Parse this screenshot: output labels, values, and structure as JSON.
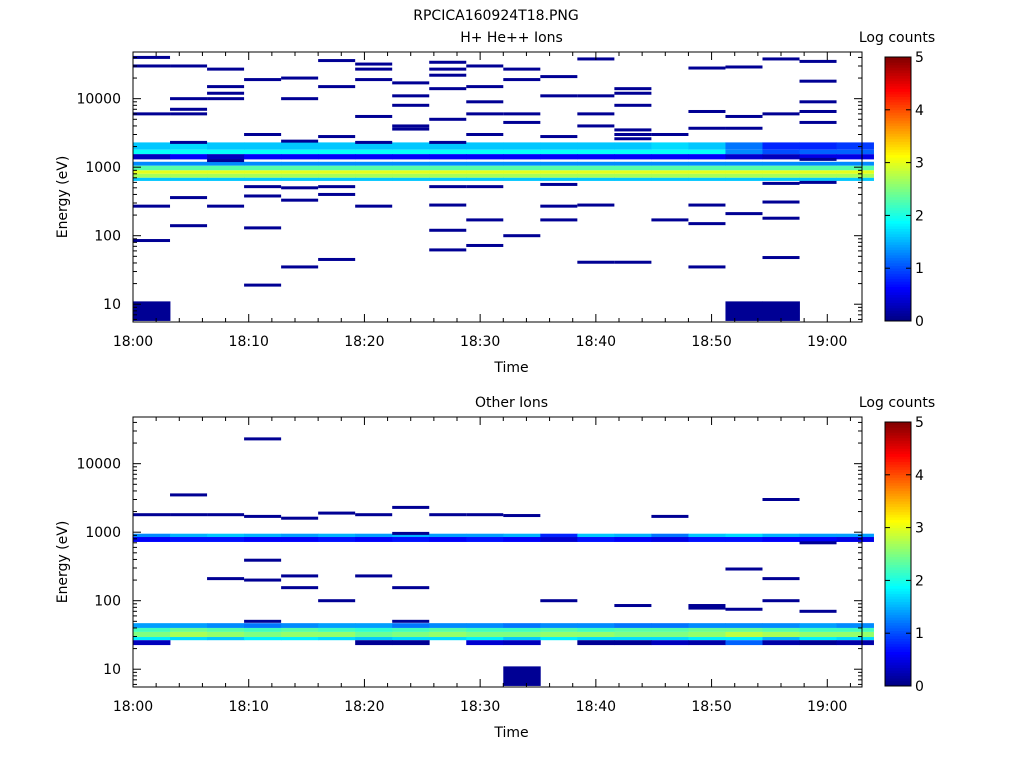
{
  "figure_title": "RPCICA160924T18.PNG",
  "chart_data": [
    {
      "type": "heatmap",
      "title": "H+ He++ Ions",
      "xlabel": "Time",
      "ylabel": "Energy (eV)",
      "x_range": [
        "18:00",
        "19:03"
      ],
      "x_ticks": [
        "18:00",
        "18:10",
        "18:20",
        "18:30",
        "18:40",
        "18:50",
        "19:00"
      ],
      "y_scale": "log",
      "y_range": [
        5.5,
        48000
      ],
      "y_ticks": [
        "10",
        "100",
        "1000",
        "10000"
      ],
      "colorbar": {
        "label": "Log counts",
        "range": [
          0,
          5
        ],
        "ticks": [
          "0",
          "1",
          "2",
          "3",
          "4",
          "5"
        ],
        "colormap": "jet"
      },
      "time_step_min": 3.2,
      "time_columns": 20,
      "value_unit": "log10 counts",
      "bands": [
        {
          "e_low": 1800,
          "e_high": 2300,
          "values": [
            1.6,
            1.7,
            1.6,
            1.6,
            1.6,
            1.6,
            1.6,
            1.6,
            1.6,
            1.6,
            1.6,
            1.6,
            1.6,
            1.6,
            1.7,
            1.6,
            1.2,
            0.8,
            0.8,
            0.9
          ]
        },
        {
          "e_low": 1550,
          "e_high": 1800,
          "values": [
            1.9,
            1.9,
            1.9,
            1.9,
            1.9,
            1.9,
            1.9,
            1.9,
            1.9,
            1.9,
            1.9,
            1.9,
            1.9,
            1.9,
            1.9,
            1.9,
            1.3,
            1.0,
            1.1,
            1.1
          ]
        },
        {
          "e_low": 1300,
          "e_high": 1550,
          "values": [
            0.3,
            0.6,
            0.3,
            0.6,
            0.6,
            0.6,
            0.6,
            0.6,
            0.6,
            0.6,
            0.6,
            0.6,
            0.6,
            0.6,
            0.6,
            0.6,
            0.4,
            0.3,
            0.5,
            0.5
          ]
        },
        {
          "e_low": 1050,
          "e_high": 1200,
          "values": [
            1.3,
            1.3,
            1.3,
            1.3,
            1.3,
            1.3,
            1.3,
            1.3,
            1.3,
            1.3,
            1.3,
            1.3,
            1.3,
            1.3,
            1.3,
            1.3,
            1.3,
            1.3,
            1.3,
            1.3
          ]
        },
        {
          "e_low": 900,
          "e_high": 1050,
          "values": [
            2.3,
            2.3,
            2.3,
            2.3,
            2.3,
            2.3,
            2.3,
            2.3,
            2.3,
            2.3,
            2.3,
            2.3,
            2.3,
            2.3,
            2.3,
            2.3,
            2.3,
            2.3,
            2.3,
            2.3
          ]
        },
        {
          "e_low": 800,
          "e_high": 900,
          "values": [
            3.0,
            3.0,
            3.0,
            3.0,
            3.0,
            3.0,
            3.0,
            3.0,
            3.0,
            3.0,
            3.0,
            3.0,
            3.0,
            3.0,
            3.0,
            3.0,
            3.0,
            3.0,
            3.0,
            3.0
          ]
        },
        {
          "e_low": 700,
          "e_high": 800,
          "values": [
            2.7,
            2.7,
            2.7,
            2.7,
            2.7,
            2.7,
            2.7,
            2.7,
            2.7,
            2.7,
            2.7,
            2.7,
            2.7,
            2.7,
            2.7,
            2.7,
            2.7,
            2.7,
            2.7,
            2.7
          ]
        },
        {
          "e_low": 630,
          "e_high": 700,
          "values": [
            1.6,
            1.6,
            1.6,
            1.6,
            1.6,
            1.6,
            1.6,
            1.6,
            1.6,
            1.6,
            1.6,
            1.6,
            1.6,
            1.6,
            1.6,
            1.6,
            1.6,
            1.6,
            1.6,
            1.6
          ]
        },
        {
          "e_low": 5.7,
          "e_high": 11,
          "values": [
            0.1,
            null,
            null,
            null,
            null,
            null,
            null,
            null,
            null,
            null,
            null,
            null,
            null,
            null,
            null,
            null,
            0.1,
            0.1,
            null,
            null
          ]
        }
      ],
      "marks": [
        {
          "col": 0,
          "e": 40000
        },
        {
          "col": 0,
          "e": 30000
        },
        {
          "col": 0,
          "e": 6000
        },
        {
          "col": 0,
          "e": 270
        },
        {
          "col": 0,
          "e": 85
        },
        {
          "col": 1,
          "e": 30000
        },
        {
          "col": 1,
          "e": 10000
        },
        {
          "col": 1,
          "e": 7000
        },
        {
          "col": 1,
          "e": 6000
        },
        {
          "col": 1,
          "e": 2300
        },
        {
          "col": 1,
          "e": 360
        },
        {
          "col": 1,
          "e": 140
        },
        {
          "col": 2,
          "e": 27000
        },
        {
          "col": 2,
          "e": 15000
        },
        {
          "col": 2,
          "e": 12000
        },
        {
          "col": 2,
          "e": 10000
        },
        {
          "col": 2,
          "e": 1250
        },
        {
          "col": 2,
          "e": 270
        },
        {
          "col": 3,
          "e": 19000
        },
        {
          "col": 3,
          "e": 3000
        },
        {
          "col": 3,
          "e": 520
        },
        {
          "col": 3,
          "e": 380
        },
        {
          "col": 3,
          "e": 130
        },
        {
          "col": 3,
          "e": 19
        },
        {
          "col": 4,
          "e": 20000
        },
        {
          "col": 4,
          "e": 10000
        },
        {
          "col": 4,
          "e": 2400
        },
        {
          "col": 4,
          "e": 500
        },
        {
          "col": 4,
          "e": 330
        },
        {
          "col": 4,
          "e": 35
        },
        {
          "col": 5,
          "e": 36000
        },
        {
          "col": 5,
          "e": 15000
        },
        {
          "col": 5,
          "e": 2800
        },
        {
          "col": 5,
          "e": 520
        },
        {
          "col": 5,
          "e": 400
        },
        {
          "col": 5,
          "e": 45
        },
        {
          "col": 6,
          "e": 32000
        },
        {
          "col": 6,
          "e": 27000
        },
        {
          "col": 6,
          "e": 19000
        },
        {
          "col": 6,
          "e": 5500
        },
        {
          "col": 6,
          "e": 2300
        },
        {
          "col": 6,
          "e": 270
        },
        {
          "col": 7,
          "e": 17000
        },
        {
          "col": 7,
          "e": 11000
        },
        {
          "col": 7,
          "e": 8000
        },
        {
          "col": 7,
          "e": 4000
        },
        {
          "col": 7,
          "e": 3600
        },
        {
          "col": 8,
          "e": 34000
        },
        {
          "col": 8,
          "e": 27000
        },
        {
          "col": 8,
          "e": 22000
        },
        {
          "col": 8,
          "e": 14000
        },
        {
          "col": 8,
          "e": 5000
        },
        {
          "col": 8,
          "e": 2300
        },
        {
          "col": 8,
          "e": 520
        },
        {
          "col": 8,
          "e": 280
        },
        {
          "col": 8,
          "e": 120
        },
        {
          "col": 8,
          "e": 62
        },
        {
          "col": 9,
          "e": 30000
        },
        {
          "col": 9,
          "e": 15000
        },
        {
          "col": 9,
          "e": 9000
        },
        {
          "col": 9,
          "e": 6000
        },
        {
          "col": 9,
          "e": 3000
        },
        {
          "col": 9,
          "e": 520
        },
        {
          "col": 9,
          "e": 170
        },
        {
          "col": 9,
          "e": 72
        },
        {
          "col": 10,
          "e": 27000
        },
        {
          "col": 10,
          "e": 19000
        },
        {
          "col": 10,
          "e": 6000
        },
        {
          "col": 10,
          "e": 4500
        },
        {
          "col": 10,
          "e": 100
        },
        {
          "col": 11,
          "e": 21000
        },
        {
          "col": 11,
          "e": 11000
        },
        {
          "col": 11,
          "e": 2800
        },
        {
          "col": 11,
          "e": 560
        },
        {
          "col": 11,
          "e": 270
        },
        {
          "col": 11,
          "e": 170
        },
        {
          "col": 12,
          "e": 38000
        },
        {
          "col": 12,
          "e": 11000
        },
        {
          "col": 12,
          "e": 6000
        },
        {
          "col": 12,
          "e": 4000
        },
        {
          "col": 12,
          "e": 280
        },
        {
          "col": 12,
          "e": 41
        },
        {
          "col": 13,
          "e": 14000
        },
        {
          "col": 13,
          "e": 12000
        },
        {
          "col": 13,
          "e": 8000
        },
        {
          "col": 13,
          "e": 3500
        },
        {
          "col": 13,
          "e": 3000
        },
        {
          "col": 13,
          "e": 2600
        },
        {
          "col": 13,
          "e": 41
        },
        {
          "col": 14,
          "e": 3000
        },
        {
          "col": 14,
          "e": 170
        },
        {
          "col": 15,
          "e": 28000
        },
        {
          "col": 15,
          "e": 6500
        },
        {
          "col": 15,
          "e": 3700
        },
        {
          "col": 15,
          "e": 280
        },
        {
          "col": 15,
          "e": 150
        },
        {
          "col": 15,
          "e": 35
        },
        {
          "col": 16,
          "e": 29000
        },
        {
          "col": 16,
          "e": 5500
        },
        {
          "col": 16,
          "e": 3700
        },
        {
          "col": 16,
          "e": 210
        },
        {
          "col": 17,
          "e": 38000
        },
        {
          "col": 17,
          "e": 6000
        },
        {
          "col": 17,
          "e": 580
        },
        {
          "col": 17,
          "e": 310
        },
        {
          "col": 17,
          "e": 180
        },
        {
          "col": 17,
          "e": 48
        },
        {
          "col": 18,
          "e": 35000
        },
        {
          "col": 18,
          "e": 18000
        },
        {
          "col": 18,
          "e": 9000
        },
        {
          "col": 18,
          "e": 6500
        },
        {
          "col": 18,
          "e": 4500
        },
        {
          "col": 18,
          "e": 1300
        },
        {
          "col": 18,
          "e": 600
        }
      ]
    },
    {
      "type": "heatmap",
      "title": "Other Ions",
      "xlabel": "Time",
      "ylabel": "Energy (eV)",
      "x_range": [
        "18:00",
        "19:03"
      ],
      "x_ticks": [
        "18:00",
        "18:10",
        "18:20",
        "18:30",
        "18:40",
        "18:50",
        "19:00"
      ],
      "y_scale": "log",
      "y_range": [
        5.5,
        48000
      ],
      "y_ticks": [
        "10",
        "100",
        "1000",
        "10000"
      ],
      "colorbar": {
        "label": "Log counts",
        "range": [
          0,
          5
        ],
        "ticks": [
          "0",
          "1",
          "2",
          "3",
          "4",
          "5"
        ],
        "colormap": "jet"
      },
      "time_step_min": 3.2,
      "time_columns": 20,
      "value_unit": "log10 counts",
      "bands": [
        {
          "e_low": 850,
          "e_high": 950,
          "values": [
            1.3,
            1.5,
            1.6,
            1.5,
            1.4,
            1.5,
            1.4,
            1.5,
            1.4,
            1.4,
            1.5,
            0.8,
            1.6,
            1.5,
            1.2,
            1.6,
            1.7,
            1.5,
            1.4,
            1.4
          ]
        },
        {
          "e_low": 720,
          "e_high": 850,
          "values": [
            0.6,
            0.7,
            0.7,
            0.6,
            0.6,
            0.7,
            0.6,
            0.7,
            0.6,
            0.7,
            0.6,
            0.4,
            0.7,
            0.6,
            0.5,
            0.7,
            0.7,
            0.6,
            0.6,
            0.5
          ]
        },
        {
          "e_low": 40,
          "e_high": 47,
          "values": [
            1.4,
            1.4,
            1.3,
            1.2,
            1.3,
            1.4,
            1.4,
            1.2,
            1.3,
            1.3,
            1.2,
            1.3,
            1.3,
            1.2,
            1.2,
            1.3,
            1.3,
            1.3,
            1.4,
            1.3
          ]
        },
        {
          "e_low": 35,
          "e_high": 40,
          "values": [
            2.2,
            2.4,
            2.3,
            2.2,
            2.3,
            2.2,
            2.1,
            2.2,
            2.3,
            2.2,
            2.2,
            2.3,
            2.2,
            2.3,
            2.3,
            2.4,
            2.4,
            2.3,
            2.2,
            2.2
          ]
        },
        {
          "e_low": 29.5,
          "e_high": 35,
          "values": [
            2.5,
            2.7,
            2.6,
            2.5,
            2.6,
            2.6,
            2.4,
            2.5,
            2.6,
            2.5,
            2.5,
            2.6,
            2.6,
            2.5,
            2.5,
            2.6,
            2.8,
            2.7,
            2.6,
            2.6
          ]
        },
        {
          "e_low": 26.5,
          "e_high": 29.5,
          "values": [
            1.8,
            1.7,
            1.6,
            1.8,
            1.8,
            1.7,
            1.6,
            1.7,
            1.7,
            1.8,
            1.6,
            1.8,
            1.7,
            1.7,
            1.7,
            1.8,
            1.8,
            1.5,
            1.8,
            1.7
          ]
        },
        {
          "e_low": 22.5,
          "e_high": 26.5,
          "values": [
            0.3,
            null,
            null,
            null,
            null,
            null,
            0.1,
            0.1,
            null,
            0.4,
            0.3,
            null,
            0.1,
            0.1,
            0.3,
            0.2,
            1.1,
            0.2,
            0.1,
            0.2
          ]
        },
        {
          "e_low": 5.7,
          "e_high": 11,
          "values": [
            null,
            null,
            null,
            null,
            null,
            null,
            null,
            null,
            null,
            null,
            0.1,
            null,
            null,
            null,
            null,
            null,
            null,
            null,
            null,
            null
          ]
        }
      ],
      "marks": [
        {
          "col": 0,
          "e": 1800
        },
        {
          "col": 1,
          "e": 3500
        },
        {
          "col": 1,
          "e": 1800
        },
        {
          "col": 2,
          "e": 1800
        },
        {
          "col": 2,
          "e": 210
        },
        {
          "col": 3,
          "e": 23000
        },
        {
          "col": 3,
          "e": 1700
        },
        {
          "col": 3,
          "e": 390
        },
        {
          "col": 3,
          "e": 200
        },
        {
          "col": 3,
          "e": 50
        },
        {
          "col": 4,
          "e": 1600
        },
        {
          "col": 4,
          "e": 230
        },
        {
          "col": 4,
          "e": 155
        },
        {
          "col": 5,
          "e": 1900
        },
        {
          "col": 5,
          "e": 100
        },
        {
          "col": 6,
          "e": 1800
        },
        {
          "col": 6,
          "e": 230
        },
        {
          "col": 7,
          "e": 2300
        },
        {
          "col": 7,
          "e": 960
        },
        {
          "col": 7,
          "e": 155
        },
        {
          "col": 7,
          "e": 50
        },
        {
          "col": 8,
          "e": 1800
        },
        {
          "col": 9,
          "e": 1800
        },
        {
          "col": 10,
          "e": 1750
        },
        {
          "col": 11,
          "e": 100
        },
        {
          "col": 13,
          "e": 85
        },
        {
          "col": 14,
          "e": 1700
        },
        {
          "col": 15,
          "e": 85
        },
        {
          "col": 15,
          "e": 78
        },
        {
          "col": 16,
          "e": 290
        },
        {
          "col": 16,
          "e": 75
        },
        {
          "col": 17,
          "e": 3000
        },
        {
          "col": 17,
          "e": 210
        },
        {
          "col": 17,
          "e": 100
        },
        {
          "col": 18,
          "e": 700
        },
        {
          "col": 18,
          "e": 70
        }
      ]
    }
  ]
}
